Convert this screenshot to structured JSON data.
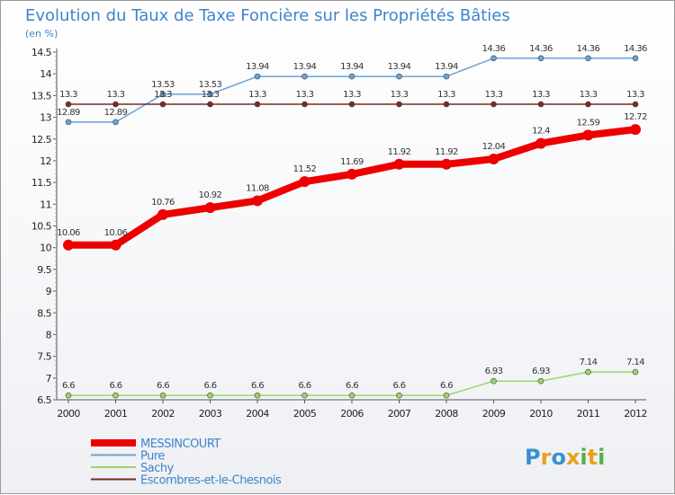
{
  "chart_data": {
    "type": "line",
    "title": "Evolution du Taux de Taxe Foncière sur les Propriétés Bâties",
    "unit_label": "(en %)",
    "x": [
      "2000",
      "2001",
      "2002",
      "2003",
      "2004",
      "2005",
      "2006",
      "2007",
      "2008",
      "2009",
      "2010",
      "2011",
      "2012"
    ],
    "yticks": [
      "6.5",
      "7",
      "7.5",
      "8",
      "8.5",
      "9",
      "9.5",
      "10",
      "10.5",
      "11",
      "11.5",
      "12",
      "12.5",
      "13",
      "13.5",
      "14",
      "14.5"
    ],
    "ylim": [
      6.5,
      14.5
    ],
    "grid": false,
    "legend_position": "bottom-left",
    "series": [
      {
        "name": "MESSINCOURT",
        "color": "#ee0000",
        "values": [
          10.06,
          10.06,
          10.76,
          10.92,
          11.08,
          11.52,
          11.69,
          11.92,
          11.92,
          12.04,
          12.4,
          12.59,
          12.72
        ],
        "labels": [
          "10.06",
          "10.06",
          "10.76",
          "10.92",
          "11.08",
          "11.52",
          "11.69",
          "11.92",
          "11.92",
          "12.04",
          "12.4",
          "12.59",
          "12.72"
        ]
      },
      {
        "name": "Pure",
        "color": "#6aa3d5",
        "values": [
          12.89,
          12.89,
          13.53,
          13.53,
          13.94,
          13.94,
          13.94,
          13.94,
          13.94,
          14.36,
          14.36,
          14.36,
          14.36
        ],
        "labels": [
          "12.89",
          "12.89",
          "13.53",
          "13.53",
          "13.94",
          "13.94",
          "13.94",
          "13.94",
          "13.94",
          "14.36",
          "14.36",
          "14.36",
          "14.36"
        ]
      },
      {
        "name": "Sachy",
        "color": "#99d66a",
        "values": [
          6.6,
          6.6,
          6.6,
          6.6,
          6.6,
          6.6,
          6.6,
          6.6,
          6.6,
          6.93,
          6.93,
          7.14,
          7.14
        ],
        "labels": [
          "6.6",
          "6.6",
          "6.6",
          "6.6",
          "6.6",
          "6.6",
          "6.6",
          "6.6",
          "6.6",
          "6.93",
          "6.93",
          "7.14",
          "7.14"
        ]
      },
      {
        "name": "Escombres-et-le-Chesnois",
        "color": "#7a2a2a",
        "values": [
          13.3,
          13.3,
          13.3,
          13.3,
          13.3,
          13.3,
          13.3,
          13.3,
          13.3,
          13.3,
          13.3,
          13.3,
          13.3
        ],
        "labels": [
          "13.3",
          "13.3",
          "13.3",
          "13.3",
          "13.3",
          "13.3",
          "13.3",
          "13.3",
          "13.3",
          "13.3",
          "13.3",
          "13.3",
          "13.3"
        ]
      }
    ]
  },
  "branding": {
    "logo_letters": [
      "P",
      "r",
      "o",
      "x",
      "i",
      "t",
      "i"
    ],
    "logo_colors": [
      "#3b8fd4",
      "#e8a21a",
      "#3b8fd4",
      "#e8a21a",
      "#55b046",
      "#e8a21a",
      "#55b046"
    ]
  }
}
